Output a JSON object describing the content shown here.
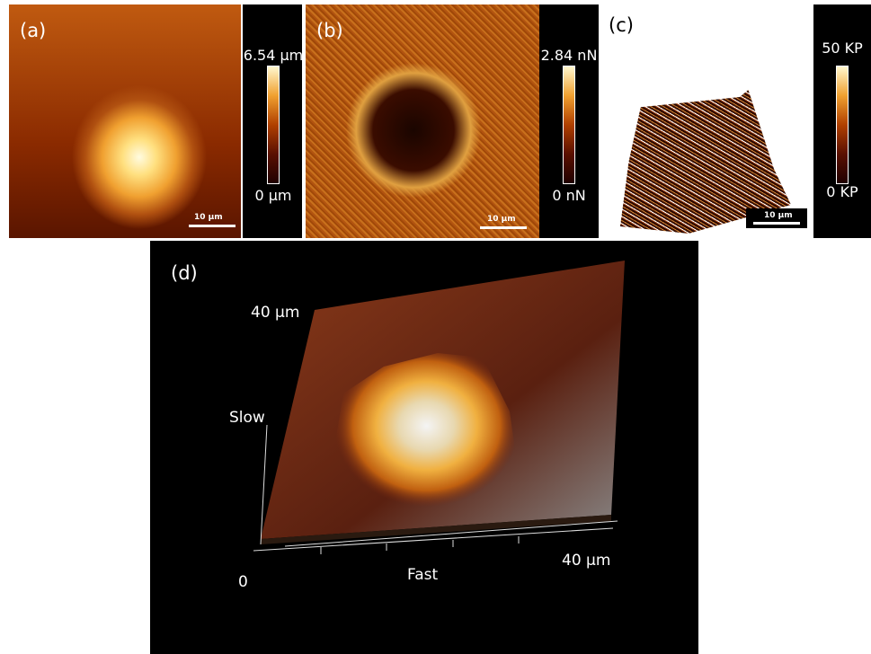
{
  "panels": [
    {
      "label": "(a)",
      "scale_bar": "10 μm",
      "colorbar_max": "6.54 μm",
      "colorbar_min": "0 μm"
    },
    {
      "label": "(b)",
      "scale_bar": "10 μm",
      "colorbar_max": "2.84 nN",
      "colorbar_min": "0 nN"
    },
    {
      "label": "(c)",
      "scale_bar": "10 μm",
      "colorbar_max": "50 KP",
      "colorbar_min": "0 KP"
    }
  ],
  "panel_d": {
    "label": "(d)",
    "slow_axis_max": "40 μm",
    "slow_axis_title": "Slow",
    "fast_axis_title": "Fast",
    "fast_axis_max": "40 μm",
    "origin": "0"
  }
}
